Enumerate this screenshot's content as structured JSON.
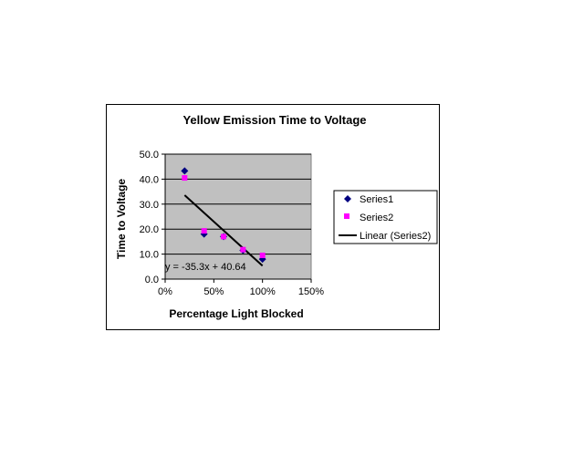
{
  "chart_data": {
    "type": "scatter",
    "title": "Yellow Emission Time to Voltage",
    "xlabel": "Percentage Light Blocked",
    "ylabel": "Time to Voltage",
    "xlim": [
      0,
      1.5
    ],
    "ylim": [
      0,
      50
    ],
    "x_ticks": [
      "0%",
      "50%",
      "100%",
      "150%"
    ],
    "x_tick_values": [
      0,
      0.5,
      1.0,
      1.5
    ],
    "y_ticks": [
      "0.0",
      "10.0",
      "20.0",
      "30.0",
      "40.0",
      "50.0"
    ],
    "y_tick_values": [
      0,
      10,
      20,
      30,
      40,
      50
    ],
    "plot_background": "#c0c0c0",
    "grid": true,
    "legend_position": "right",
    "series": [
      {
        "name": "Series1",
        "marker": "diamond",
        "color": "#000080",
        "x": [
          0.2,
          0.4,
          0.6,
          0.8,
          1.0
        ],
        "y": [
          43.3,
          18.0,
          17.0,
          11.5,
          8.0
        ]
      },
      {
        "name": "Series2",
        "marker": "square",
        "color": "#ff00ff",
        "x": [
          0.2,
          0.4,
          0.6,
          0.8,
          1.0
        ],
        "y": [
          40.5,
          19.3,
          17.0,
          11.8,
          9.5
        ]
      }
    ],
    "trendline": {
      "name": "Linear (Series2)",
      "color": "#000000",
      "slope": -35.3,
      "intercept": 40.64,
      "x_range": [
        0.2,
        1.0
      ],
      "equation": "y = -35.3x + 40.64"
    }
  }
}
